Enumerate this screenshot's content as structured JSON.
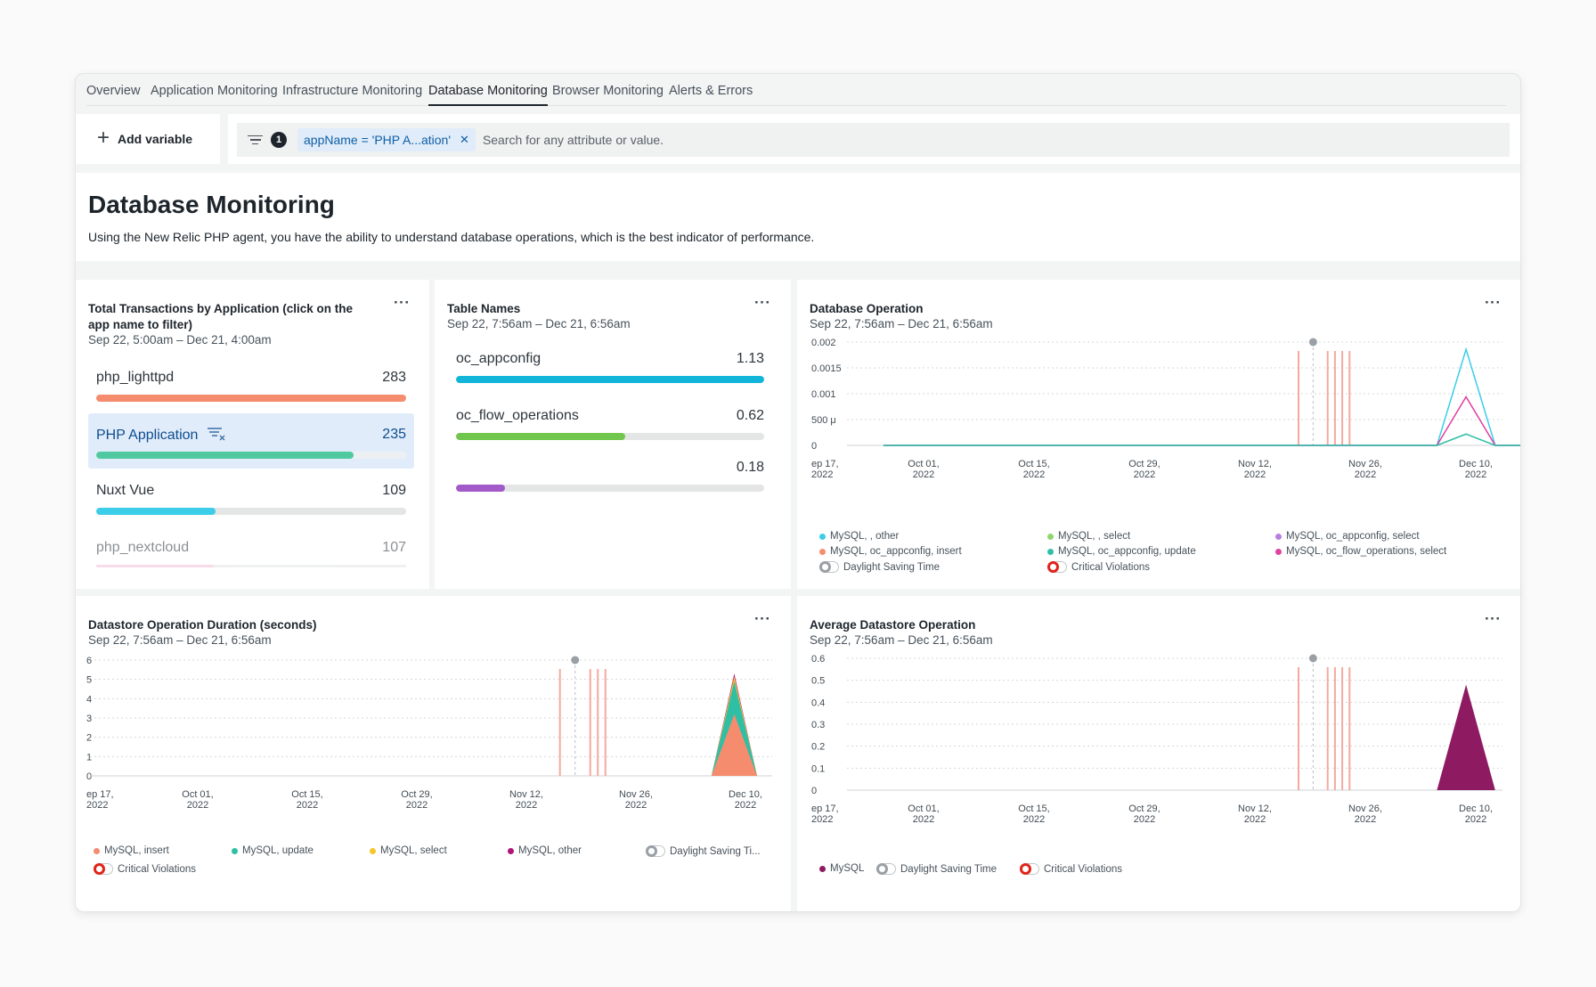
{
  "tabs": [
    {
      "label": "Overview"
    },
    {
      "label": "Application Monitoring"
    },
    {
      "label": "Infrastructure Monitoring"
    },
    {
      "label": "Database Monitoring",
      "active": true
    },
    {
      "label": "Browser Monitoring"
    },
    {
      "label": "Alerts & Errors"
    }
  ],
  "toolbar": {
    "add_variable_label": "Add variable",
    "filter_count": "1",
    "filter_chip": "appName = 'PHP A...ation'",
    "search_placeholder": "Search for any attribute or value."
  },
  "hero": {
    "title": "Database Monitoring",
    "description": "Using the New Relic PHP agent, you have the ability to understand database operations, which is the best indicator of performance."
  },
  "total_transactions": {
    "title_line1": "Total Transactions by Application (click on the",
    "title_line2": "app name to filter)",
    "time_range": "Sep 22, 5:00am – Dec 21, 4:00am",
    "items": [
      {
        "name": "php_lighttpd",
        "value": "283",
        "fraction": 1.0,
        "color": "#f58c6e"
      },
      {
        "name": "PHP Application",
        "value": "235",
        "fraction": 0.83,
        "color": "#50c9a0",
        "selected": true
      },
      {
        "name": "Nuxt Vue",
        "value": "109",
        "fraction": 0.385,
        "color": "#3ccde8"
      },
      {
        "name": "php_nextcloud",
        "value": "107",
        "fraction": 0.378,
        "color": "#f4bfdc"
      }
    ]
  },
  "table_names": {
    "title": "Table Names",
    "time_range": "Sep 22, 7:56am – Dec 21, 6:56am",
    "items": [
      {
        "name": "oc_appconfig",
        "value": "1.13",
        "fraction": 1.0,
        "color": "#11b5d9"
      },
      {
        "name": "oc_flow_operations",
        "value": "0.62",
        "fraction": 0.55,
        "color": "#71c64e"
      },
      {
        "name": "",
        "value": "0.18",
        "fraction": 0.16,
        "color": "#a35ac9"
      }
    ]
  },
  "database_operation": {
    "title": "Database Operation",
    "time_range": "Sep 22, 7:56am – Dec 21, 6:56am",
    "legend": [
      {
        "label": "MySQL, , other",
        "color": "#3ccde8",
        "kind": "dot"
      },
      {
        "label": "MySQL, , select",
        "color": "#8fd56a",
        "kind": "dot"
      },
      {
        "label": "MySQL, oc_appconfig, select",
        "color": "#b97fe0",
        "kind": "dot"
      },
      {
        "label": "MySQL, oc_appconfig, insert",
        "color": "#f58c6e",
        "kind": "dot"
      },
      {
        "label": "MySQL, oc_appconfig, update",
        "color": "#2fbfa5",
        "kind": "dot"
      },
      {
        "label": "MySQL, oc_flow_operations, select",
        "color": "#e040a0",
        "kind": "dot"
      },
      {
        "label": "Daylight Saving Time",
        "kind": "toggle"
      },
      {
        "label": "Critical Violations",
        "kind": "toggle-red"
      }
    ]
  },
  "datastore_duration": {
    "title": "Datastore Operation Duration (seconds)",
    "time_range": "Sep 22, 7:56am – Dec 21, 6:56am",
    "legend": [
      {
        "label": "MySQL, insert",
        "color": "#f58c6e",
        "kind": "dot"
      },
      {
        "label": "MySQL, update",
        "color": "#2fbfa5",
        "kind": "dot"
      },
      {
        "label": "MySQL, select",
        "color": "#f5c62e",
        "kind": "dot"
      },
      {
        "label": "MySQL, other",
        "color": "#b0157a",
        "kind": "dot"
      },
      {
        "label": "Daylight Saving Ti...",
        "kind": "toggle"
      },
      {
        "label": "Critical Violations",
        "kind": "toggle-red"
      }
    ]
  },
  "avg_datastore": {
    "title": "Average Datastore Operation",
    "time_range": "Sep 22, 7:56am – Dec 21, 6:56am",
    "legend": [
      {
        "label": "MySQL",
        "color": "#8e1a62",
        "kind": "dot"
      },
      {
        "label": "Daylight Saving Time",
        "kind": "toggle"
      },
      {
        "label": "Critical Violations",
        "kind": "toggle-red"
      }
    ]
  },
  "chart_data": [
    {
      "type": "line",
      "title": "Database Operation",
      "x_ticks": [
        "ep 17, 2022",
        "Oct 01, 2022",
        "Oct 15, 2022",
        "Oct 29, 2022",
        "Nov 12, 2022",
        "Nov 26, 2022",
        "Dec 10, 2022"
      ],
      "x_ticks_display": [
        [
          "ep 17,",
          "2022"
        ],
        [
          "Oct 01,",
          "2022"
        ],
        [
          "Oct 15,",
          "2022"
        ],
        [
          "Oct 29,",
          "2022"
        ],
        [
          "Nov 12,",
          "2022"
        ],
        [
          "Nov 26,",
          "2022"
        ],
        [
          "Dec 10,",
          "2022"
        ]
      ],
      "y_ticks": [
        "0.002",
        "0.0015",
        "0.001",
        "500 μ",
        "0"
      ],
      "ylim": [
        0,
        0.002
      ],
      "x_day_range": [
        0,
        90
      ],
      "series": [
        {
          "name": "MySQL, , other",
          "color": "#3ccde8",
          "x": [
            5,
            81,
            85,
            89,
            95
          ],
          "values": [
            0,
            0,
            0.00186,
            0,
            0
          ]
        },
        {
          "name": "MySQL, oc_flow_operations, select",
          "color": "#e040a0",
          "x": [
            5,
            81,
            85,
            89,
            95
          ],
          "values": [
            0,
            0,
            0.00094,
            0,
            0
          ]
        },
        {
          "name": "MySQL, oc_appconfig, update",
          "color": "#2fbfa5",
          "x": [
            5,
            81,
            85,
            89,
            95
          ],
          "values": [
            0,
            0,
            0.00022,
            0,
            0
          ]
        }
      ],
      "violations_days": [
        62,
        66,
        67,
        68,
        69
      ],
      "dst_day": 64
    },
    {
      "type": "area",
      "title": "Datastore Operation Duration (seconds)",
      "x_ticks": [
        "ep 17, 2022",
        "Oct 01, 2022",
        "Oct 15, 2022",
        "Oct 29, 2022",
        "Nov 12, 2022",
        "Nov 26, 2022",
        "Dec 10, 2022"
      ],
      "x_ticks_display": [
        [
          "ep 17,",
          "2022"
        ],
        [
          "Oct 01,",
          "2022"
        ],
        [
          "Oct 15,",
          "2022"
        ],
        [
          "Oct 29,",
          "2022"
        ],
        [
          "Nov 12,",
          "2022"
        ],
        [
          "Nov 26,",
          "2022"
        ],
        [
          "Dec 10,",
          "2022"
        ]
      ],
      "y_ticks": [
        "6",
        "5",
        "4",
        "3",
        "2",
        "1",
        "0"
      ],
      "ylim": [
        0,
        6
      ],
      "x_day_range": [
        0,
        90
      ],
      "stacked": [
        {
          "name": "MySQL, insert",
          "color": "#f58c6e",
          "peak": 3.2
        },
        {
          "name": "MySQL, update",
          "color": "#2fbfa5",
          "peak": 1.7
        },
        {
          "name": "MySQL, select",
          "color": "#f5c62e",
          "peak": 0.25
        },
        {
          "name": "MySQL, other",
          "color": "#b0157a",
          "peak": 0.15
        }
      ],
      "peak_day": 85,
      "start_day": 82,
      "end_day": 88,
      "violations_days": [
        62,
        66,
        67,
        68
      ],
      "dst_day": 64
    },
    {
      "type": "area",
      "title": "Average Datastore Operation",
      "x_ticks": [
        "ep 17, 2022",
        "Oct 01, 2022",
        "Oct 15, 2022",
        "Oct 29, 2022",
        "Nov 12, 2022",
        "Nov 26, 2022",
        "Dec 10, 2022"
      ],
      "x_ticks_display": [
        [
          "ep 17,",
          "2022"
        ],
        [
          "Oct 01,",
          "2022"
        ],
        [
          "Oct 15,",
          "2022"
        ],
        [
          "Oct 29,",
          "2022"
        ],
        [
          "Nov 12,",
          "2022"
        ],
        [
          "Nov 26,",
          "2022"
        ],
        [
          "Dec 10,",
          "2022"
        ]
      ],
      "y_ticks": [
        "0.6",
        "0.5",
        "0.4",
        "0.3",
        "0.2",
        "0.1",
        "0"
      ],
      "ylim": [
        0,
        0.6
      ],
      "x_day_range": [
        0,
        90
      ],
      "series": [
        {
          "name": "MySQL",
          "color": "#8e1a62",
          "peak": 0.48
        }
      ],
      "peak_day": 85,
      "start_day": 81,
      "end_day": 89,
      "violations_days": [
        62,
        66,
        67,
        68,
        69
      ],
      "dst_day": 64
    }
  ]
}
